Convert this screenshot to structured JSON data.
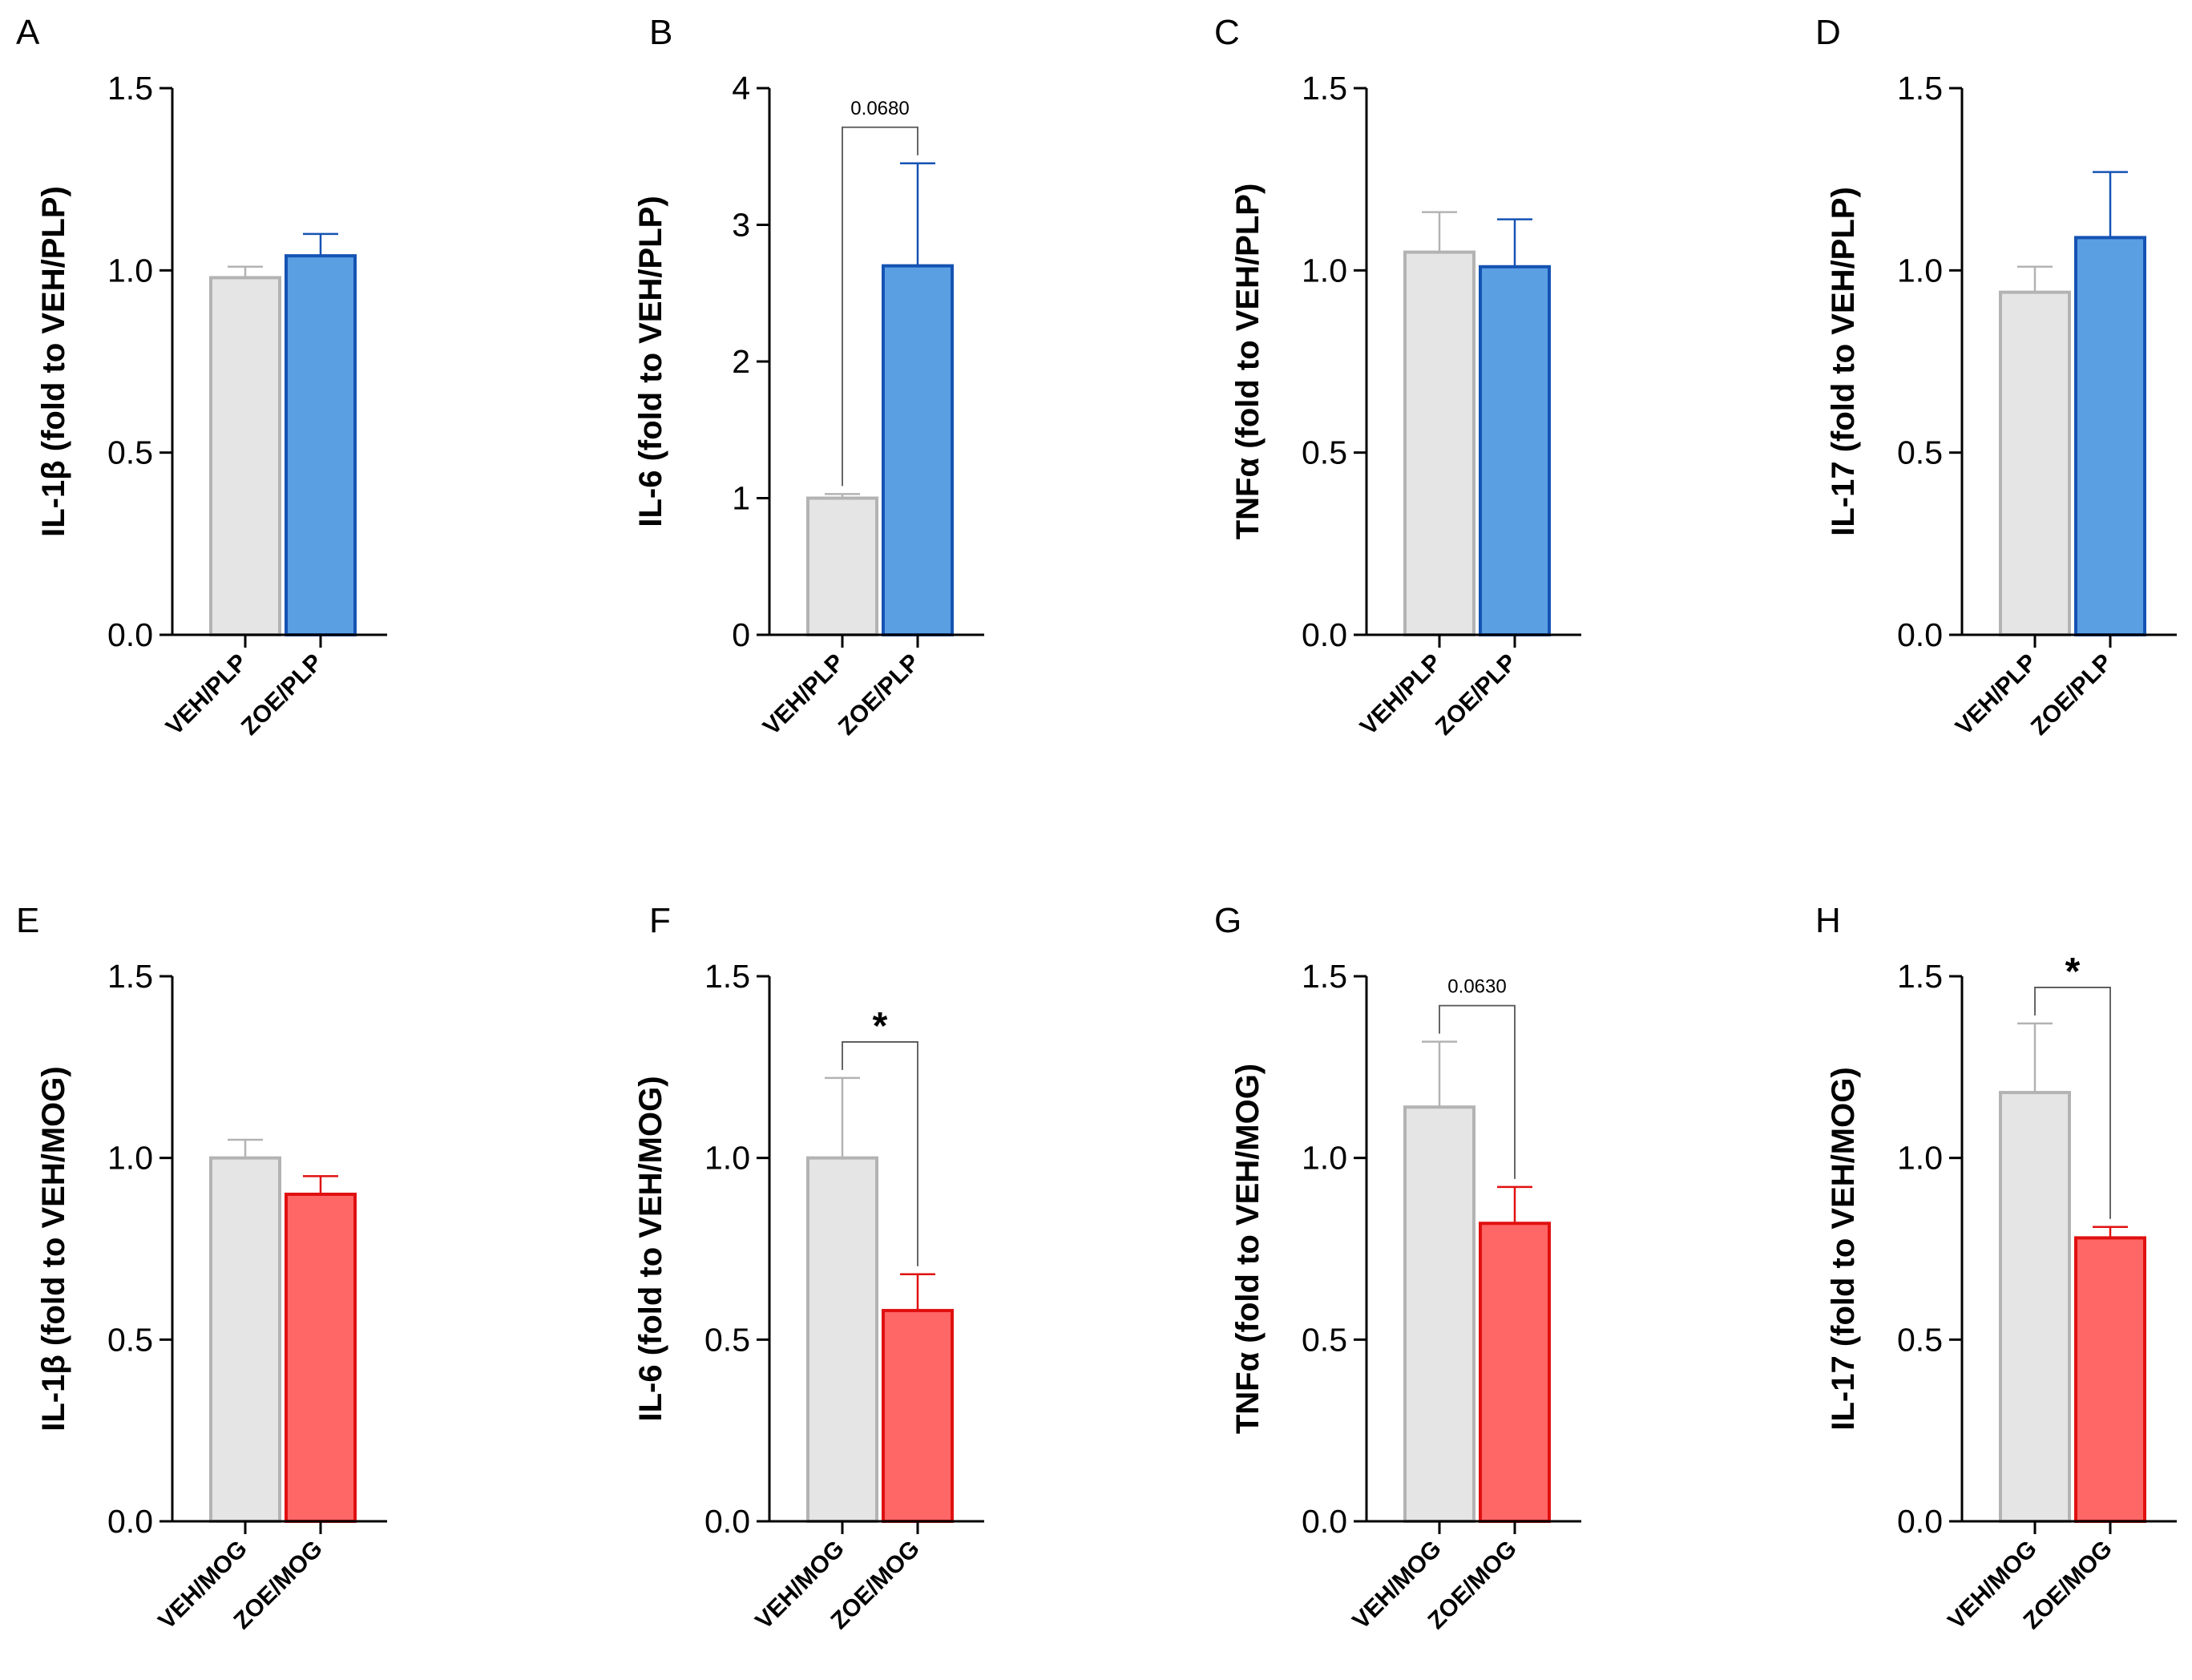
{
  "colors": {
    "control_fill": "#e5e5e5",
    "control_edge": "#b3b3b3",
    "plp_fill": "#5b9fe3",
    "plp_edge": "#1553b3",
    "mog_fill": "#ff6666",
    "mog_edge": "#e01010",
    "axis": "#000000",
    "bracket": "#555555"
  },
  "chart_data": [
    {
      "panel": "A",
      "type": "bar",
      "ylabel": "IL-1β (fold to VEH/PLP)",
      "ylim": [
        0,
        1.5
      ],
      "yticks": [
        0,
        0.5,
        1.0,
        1.5
      ],
      "ytick_labels": [
        "0.0",
        "0.5",
        "1.0",
        "1.5"
      ],
      "categories": [
        "VEH/PLP",
        "ZOE/PLP"
      ],
      "values": [
        0.98,
        1.04
      ],
      "error": [
        0.03,
        0.06
      ],
      "treatment_color": "plp",
      "significance": null
    },
    {
      "panel": "B",
      "type": "bar",
      "ylabel": "IL-6 (fold to VEH/PLP)",
      "ylim": [
        0,
        4
      ],
      "yticks": [
        0,
        1,
        2,
        3,
        4
      ],
      "ytick_labels": [
        "0",
        "1",
        "2",
        "3",
        "4"
      ],
      "categories": [
        "VEH/PLP",
        "ZOE/PLP"
      ],
      "values": [
        1.0,
        2.7
      ],
      "error": [
        0.03,
        0.75
      ],
      "treatment_color": "plp",
      "significance": {
        "label": "0.0680",
        "kind": "p"
      }
    },
    {
      "panel": "C",
      "type": "bar",
      "ylabel": "TNFα (fold to VEH/PLP)",
      "ylim": [
        0,
        1.5
      ],
      "yticks": [
        0,
        0.5,
        1.0,
        1.5
      ],
      "ytick_labels": [
        "0.0",
        "0.5",
        "1.0",
        "1.5"
      ],
      "categories": [
        "VEH/PLP",
        "ZOE/PLP"
      ],
      "values": [
        1.05,
        1.01
      ],
      "error": [
        0.11,
        0.13
      ],
      "treatment_color": "plp",
      "significance": null
    },
    {
      "panel": "D",
      "type": "bar",
      "ylabel": "IL-17 (fold to VEH/PLP)",
      "ylim": [
        0,
        1.5
      ],
      "yticks": [
        0,
        0.5,
        1.0,
        1.5
      ],
      "ytick_labels": [
        "0.0",
        "0.5",
        "1.0",
        "1.5"
      ],
      "categories": [
        "VEH/PLP",
        "ZOE/PLP"
      ],
      "values": [
        0.94,
        1.09
      ],
      "error": [
        0.07,
        0.18
      ],
      "treatment_color": "plp",
      "significance": null
    },
    {
      "panel": "E",
      "type": "bar",
      "ylabel": "IL-1β (fold to VEH/MOG)",
      "ylim": [
        0,
        1.5
      ],
      "yticks": [
        0,
        0.5,
        1.0,
        1.5
      ],
      "ytick_labels": [
        "0.0",
        "0.5",
        "1.0",
        "1.5"
      ],
      "categories": [
        "VEH/MOG",
        "ZOE/MOG"
      ],
      "values": [
        1.0,
        0.9
      ],
      "error": [
        0.05,
        0.05
      ],
      "treatment_color": "mog",
      "significance": null
    },
    {
      "panel": "F",
      "type": "bar",
      "ylabel": "IL-6 (fold to VEH/MOG)",
      "ylim": [
        0,
        1.5
      ],
      "yticks": [
        0,
        0.5,
        1.0,
        1.5
      ],
      "ytick_labels": [
        "0.0",
        "0.5",
        "1.0",
        "1.5"
      ],
      "categories": [
        "VEH/MOG",
        "ZOE/MOG"
      ],
      "values": [
        1.0,
        0.58
      ],
      "error": [
        0.22,
        0.1
      ],
      "treatment_color": "mog",
      "significance": {
        "label": "*",
        "kind": "star"
      }
    },
    {
      "panel": "G",
      "type": "bar",
      "ylabel": "TNFα (fold to VEH/MOG)",
      "ylim": [
        0,
        1.5
      ],
      "yticks": [
        0,
        0.5,
        1.0,
        1.5
      ],
      "ytick_labels": [
        "0.0",
        "0.5",
        "1.0",
        "1.5"
      ],
      "categories": [
        "VEH/MOG",
        "ZOE/MOG"
      ],
      "values": [
        1.14,
        0.82
      ],
      "error": [
        0.18,
        0.1
      ],
      "treatment_color": "mog",
      "significance": {
        "label": "0.0630",
        "kind": "p"
      }
    },
    {
      "panel": "H",
      "type": "bar",
      "ylabel": "IL-17 (fold to VEH/MOG)",
      "ylim": [
        0,
        1.5
      ],
      "yticks": [
        0,
        0.5,
        1.0,
        1.5
      ],
      "ytick_labels": [
        "0.0",
        "0.5",
        "1.0",
        "1.5"
      ],
      "categories": [
        "VEH/MOG",
        "ZOE/MOG"
      ],
      "values": [
        1.18,
        0.78
      ],
      "error": [
        0.19,
        0.03
      ],
      "treatment_color": "mog",
      "significance": {
        "label": "*",
        "kind": "star"
      }
    }
  ]
}
